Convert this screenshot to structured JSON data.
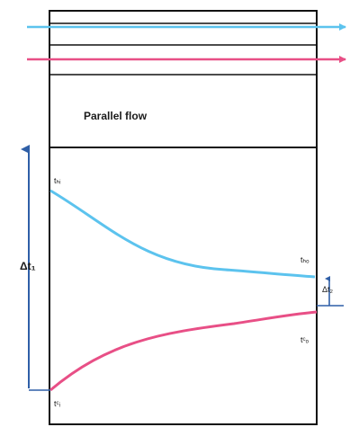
{
  "diagram": {
    "title": "Parallel flow",
    "labels": {
      "hot_in": "tₕᵢ",
      "hot_out": "tₕₒ",
      "cold_in": "tᶜᵢ",
      "cold_out": "tᶜₒ",
      "delta_1": "Δt₁",
      "delta_2": "Δt₂"
    },
    "colors": {
      "hot": "#5cc3ee",
      "cold": "#e84f86",
      "axis": "#2f5fa7",
      "frame": "#111111"
    }
  }
}
